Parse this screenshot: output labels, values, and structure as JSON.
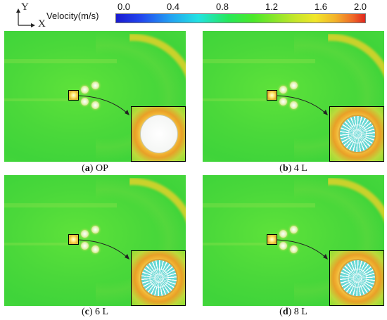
{
  "axes": {
    "y_label": "Y",
    "x_label": "X"
  },
  "colorbar": {
    "title": "Velocity(m/s)",
    "ticks": [
      "0.0",
      "0.4",
      "0.8",
      "1.2",
      "1.6",
      "2.0"
    ]
  },
  "panels": [
    {
      "letter": "a",
      "label": "OP",
      "cylinder_style": "plain"
    },
    {
      "letter": "b",
      "label": "4 L",
      "cylinder_style": "mesh"
    },
    {
      "letter": "c",
      "label": "6 L",
      "cylinder_style": "mesh"
    },
    {
      "letter": "d",
      "label": "8 L",
      "cylinder_style": "mesh"
    }
  ]
}
